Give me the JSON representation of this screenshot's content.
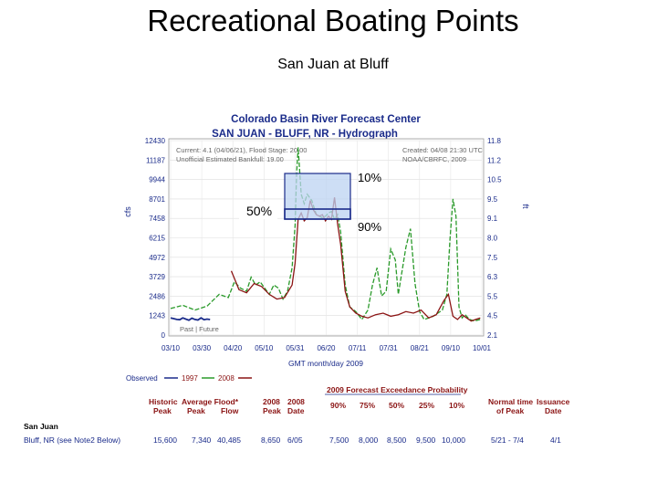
{
  "slide": {
    "title": "Recreational Boating Points",
    "subtitle": "San Juan at Bluff"
  },
  "chart_data": {
    "type": "line",
    "title": "Colorado Basin River Forecast Center",
    "subtitle": "SAN JUAN - BLUFF, NR - Hydrograph",
    "xlabel": "GMT month/day 2009",
    "ylabel_left": "cfs",
    "ylabel_right": "ft",
    "x_ticks": [
      "03/10",
      "03/30",
      "04/20",
      "05/10",
      "05/31",
      "06/20",
      "07/11",
      "07/31",
      "08/21",
      "09/10",
      "10/01"
    ],
    "y_ticks_left": [
      0,
      1243,
      2486,
      3729,
      4972,
      6215,
      7458,
      8701,
      9944,
      11187,
      12430
    ],
    "y_ticks_left_labels": [
      "0",
      "1243",
      "2486",
      "3729",
      "4972",
      "6215",
      "7458",
      "8701",
      "9944",
      "11187",
      "12430"
    ],
    "y_ticks_right_labels": [
      "2.1",
      "4.5",
      "5.5",
      "6.3",
      "7.5",
      "8.0",
      "9.1",
      "9.5",
      "10.5",
      "11.2",
      "11.8"
    ],
    "ylim": [
      0,
      12430
    ],
    "grid": true,
    "info_left": [
      "Current: 4.1 (04/06/21), Flood Stage: 20.00",
      "Unofficial Estimated Bankfull: 19.00"
    ],
    "info_right": [
      "Created: 04/08 21:30 UTC",
      "NOAA/CBRFC, 2009"
    ],
    "past_future_label": "Past | Future",
    "legend": {
      "observed_label": "Observed",
      "items": [
        "1997",
        "2008"
      ],
      "colors": [
        "#1a2b8a",
        "#2a9a2a",
        "#8b1414"
      ]
    },
    "series": [
      {
        "name": "Observed",
        "color": "#1a2b8a",
        "x_day": [
          0,
          2,
          4,
          6,
          8,
          10,
          12,
          14,
          16,
          18,
          20,
          22,
          24,
          26
        ],
        "values": [
          1100,
          1050,
          1000,
          980,
          1100,
          1020,
          950,
          1080,
          1000,
          960,
          1100,
          980,
          1020,
          990
        ]
      },
      {
        "name": "1997",
        "color": "#2a9a2a",
        "x_day": [
          0,
          8,
          16,
          24,
          32,
          38,
          42,
          46,
          50,
          53,
          56,
          59,
          62,
          65,
          68,
          71,
          74,
          77,
          80,
          82,
          83,
          84,
          86,
          88,
          90,
          93,
          96,
          98,
          100,
          102,
          104,
          106,
          108,
          110,
          112,
          115,
          118,
          122,
          126,
          130,
          133,
          136,
          139,
          142,
          145,
          148,
          150,
          152,
          155,
          158,
          161,
          164,
          167,
          170,
          173,
          176,
          179,
          182,
          184,
          186,
          188,
          190,
          192,
          194,
          197,
          200,
          204
        ],
        "values": [
          1700,
          1900,
          1600,
          1850,
          2600,
          2400,
          3400,
          3000,
          2800,
          3700,
          3200,
          3400,
          3000,
          2600,
          3200,
          3000,
          2300,
          2800,
          4300,
          7000,
          10400,
          12000,
          9000,
          8400,
          9000,
          8600,
          7700,
          7600,
          7500,
          7600,
          7800,
          7900,
          7400,
          7700,
          6600,
          3200,
          1800,
          1500,
          1000,
          1600,
          3200,
          4300,
          2500,
          2800,
          5500,
          4800,
          2600,
          3800,
          5600,
          6800,
          3300,
          1500,
          1000,
          1100,
          1200,
          1400,
          1600,
          2600,
          6100,
          8700,
          7600,
          1800,
          1100,
          1300,
          1000,
          900,
          1000
        ]
      },
      {
        "name": "2008",
        "color": "#8b1414",
        "x_day": [
          40,
          45,
          50,
          55,
          60,
          65,
          70,
          75,
          80,
          82,
          84,
          86,
          88,
          90,
          92,
          94,
          96,
          98,
          100,
          102,
          104,
          106,
          108,
          110,
          112,
          115,
          118,
          122,
          126,
          130,
          135,
          140,
          145,
          150,
          155,
          160,
          165,
          170,
          175,
          180,
          183,
          186,
          189,
          192,
          195,
          198,
          201,
          204
        ],
        "values": [
          4100,
          2900,
          2700,
          3300,
          3100,
          2600,
          2300,
          2400,
          3200,
          4600,
          7400,
          7800,
          7300,
          7500,
          8600,
          8000,
          7700,
          7600,
          7700,
          7300,
          7600,
          7400,
          8800,
          7100,
          5800,
          2800,
          1800,
          1400,
          1200,
          1100,
          1300,
          1400,
          1200,
          1300,
          1500,
          1400,
          1600,
          1100,
          1300,
          2200,
          2600,
          1200,
          1000,
          1300,
          1100,
          900,
          1000,
          1100
        ]
      }
    ],
    "annotations": {
      "p10_label": "10%",
      "p90_label": "90%",
      "p50_label": "50%",
      "p10_value": 10000,
      "p90_value": 7500,
      "p50_value": 8500
    }
  },
  "footer": {
    "headers_maroon": {
      "historic": "Historic",
      "avg_flood": "Average Flood*",
      "peak1": "Peak",
      "peak2": "Peak",
      "flow": "Flow",
      "y2008a": "2008",
      "y2008b": "2008",
      "peak3": "Peak",
      "date": "Date"
    },
    "forecast_header": "2009 Forecast Exceedance Probability",
    "pct": [
      "90%",
      "75%",
      "50%",
      "25%",
      "10%"
    ],
    "normal_time": "Normal time",
    "of_peak": "of Peak",
    "issuance": "Issuance",
    "issuance_date": "Date",
    "site_name": "San Juan",
    "site_sub": "Bluff, NR (see Note2 Below)",
    "values": {
      "historic_peak": "15,600",
      "avg_flood_peak": "7,340",
      "avg_flood_flow": "40,485",
      "peak_2008": "8,650",
      "date_2008": "6/05",
      "f90": "7,500",
      "f75": "8,000",
      "f50": "8,500",
      "f25": "9,500",
      "f10": "10,000",
      "normal_time": "5/21 - 7/4",
      "issuance": "4/1"
    }
  }
}
